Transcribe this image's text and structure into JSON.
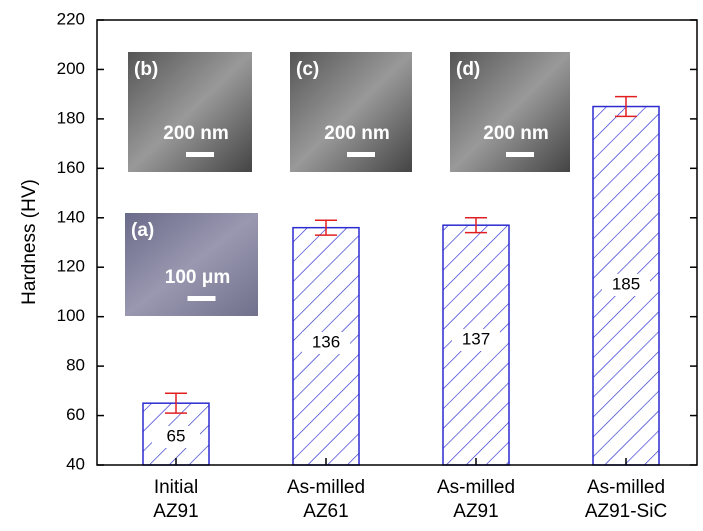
{
  "chart_data": {
    "type": "bar",
    "y_label": "Hardness (HV)",
    "categories": [
      [
        "Initial",
        "AZ91"
      ],
      [
        "As-milled",
        "AZ61"
      ],
      [
        "As-milled",
        "AZ91"
      ],
      [
        "As-milled",
        "AZ91-SiC"
      ]
    ],
    "values": [
      65,
      136,
      137,
      185
    ],
    "errors": [
      4,
      3,
      3,
      4
    ],
    "color": "#2b2bd0",
    "error_color": "#e02020",
    "ylim": [
      40,
      220
    ],
    "yticks": [
      40,
      60,
      80,
      100,
      120,
      140,
      160,
      180,
      200,
      220
    ],
    "insets": [
      {
        "label": "(a)",
        "scale": "100 μm"
      },
      {
        "label": "(b)",
        "scale": "200 nm"
      },
      {
        "label": "(c)",
        "scale": "200 nm"
      },
      {
        "label": "(d)",
        "scale": "200 nm"
      }
    ]
  }
}
